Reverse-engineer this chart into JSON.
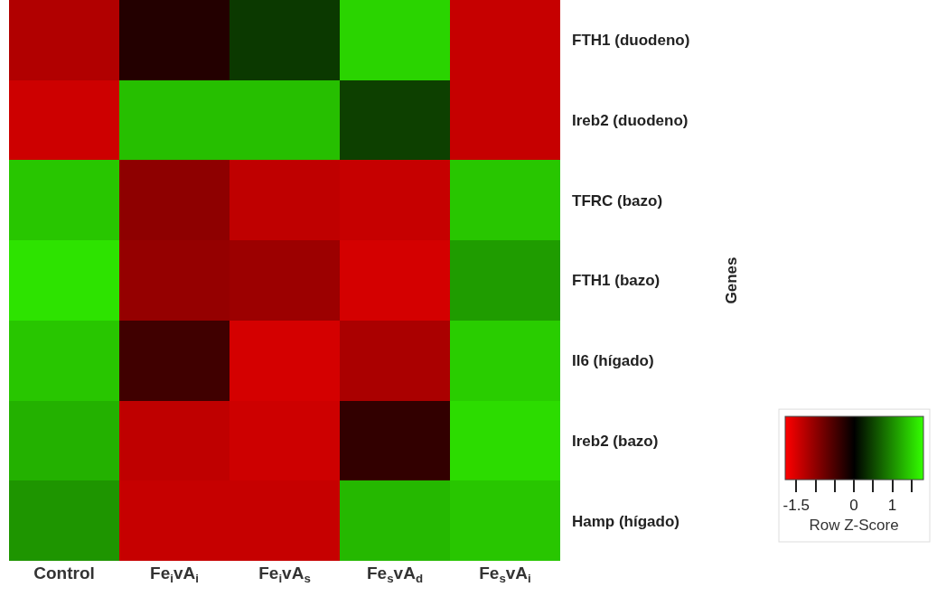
{
  "chart_data": {
    "type": "heatmap",
    "ylabel": "Genes",
    "clabel": "Row Z-Score",
    "categories": [
      "Control",
      "Fe$_{i}$vA$_{i}$",
      "Fe$_{i}$vA$_{s}$",
      "Fe$_{s}$vA$_{d}$",
      "Fe$_{s}$vA$_{i}$"
    ],
    "y_categories": [
      "FTH1 (duodeno)",
      "Ireb2 (duodeno)",
      "TFRC (bazo)",
      "FTH1 (bazo)",
      "Il6 (hígado)",
      "Ireb2 (bazo)",
      "Hamp (hígado)"
    ],
    "cells": [
      [
        -1.25,
        -0.25,
        0.4,
        1.5,
        -1.4
      ],
      [
        -1.45,
        1.35,
        1.35,
        0.45,
        -1.4
      ],
      [
        1.4,
        -1.0,
        -1.35,
        -1.4,
        1.4
      ],
      [
        1.6,
        -1.05,
        -1.1,
        -1.5,
        1.1
      ],
      [
        1.4,
        -0.45,
        -1.5,
        -1.2,
        1.45
      ],
      [
        1.25,
        -1.35,
        -1.45,
        -0.35,
        1.55
      ],
      [
        1.05,
        -1.4,
        -1.4,
        1.3,
        1.4
      ]
    ],
    "clim": [
      -1.8,
      1.8
    ],
    "cticks": [
      -1.5,
      {
        "value": -1,
        "label": null
      },
      {
        "value": -0.5,
        "label": null
      },
      0,
      {
        "value": 0.5,
        "label": null
      },
      1,
      {
        "value": 1.5,
        "label": null
      }
    ],
    "colors": [
      "#ff0000",
      "#000000",
      "#33ff00"
    ]
  }
}
